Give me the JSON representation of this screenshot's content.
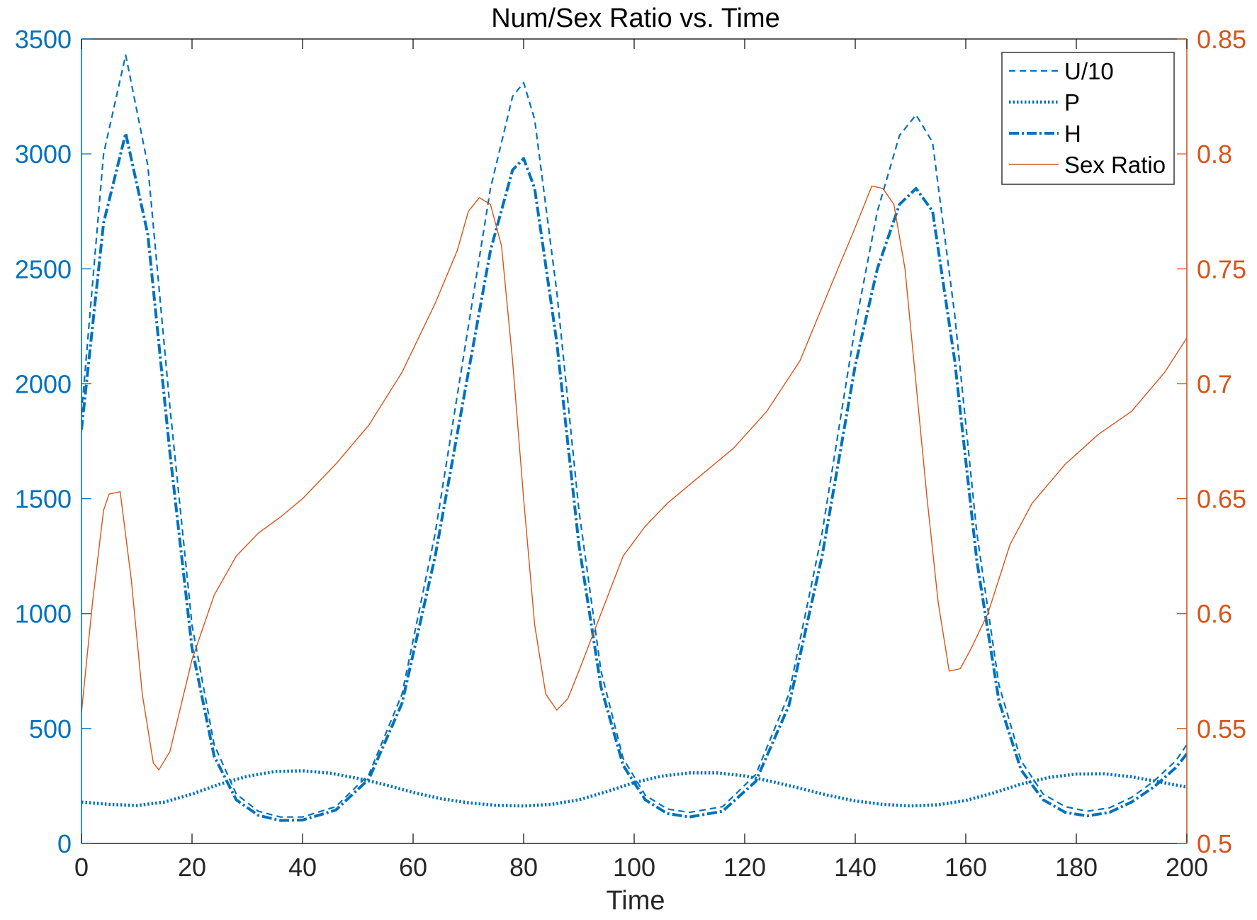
{
  "chart_data": {
    "type": "line",
    "title": "Num/Sex Ratio vs. Time",
    "xlabel": "Time",
    "ylabel_left": "",
    "ylabel_right": "",
    "xlim": [
      0,
      200
    ],
    "ylim_left": [
      0,
      3500
    ],
    "ylim_right": [
      0.5,
      0.85
    ],
    "x_ticks": [
      0,
      20,
      40,
      60,
      80,
      100,
      120,
      140,
      160,
      180,
      200
    ],
    "y_left_ticks": [
      0,
      500,
      1000,
      1500,
      2000,
      2500,
      3000,
      3500
    ],
    "y_right_ticks": [
      "0.5",
      "0.55",
      "0.6",
      "0.65",
      "0.7",
      "0.75",
      "0.8",
      "0.85"
    ],
    "grid": false,
    "legend_position": "top-right",
    "colors": {
      "left_axis": "#0072BD",
      "right_axis": "#D95319",
      "axes_black": "#262626"
    },
    "series": [
      {
        "name": "U/10",
        "axis": "left",
        "style": "dashed",
        "color": "#0072BD",
        "x": [
          0,
          4,
          8,
          12,
          16,
          20,
          24,
          28,
          32,
          36,
          40,
          46,
          52,
          58,
          64,
          70,
          74,
          78,
          80,
          82,
          86,
          90,
          94,
          98,
          102,
          106,
          110,
          116,
          122,
          128,
          134,
          140,
          144,
          148,
          151,
          154,
          158,
          162,
          166,
          170,
          174,
          178,
          182,
          186,
          190,
          194,
          198,
          200
        ],
        "values": [
          1870,
          3000,
          3430,
          2950,
          1900,
          950,
          430,
          215,
          140,
          115,
          115,
          160,
          300,
          650,
          1350,
          2250,
          2850,
          3250,
          3310,
          3150,
          2400,
          1450,
          750,
          370,
          210,
          150,
          135,
          160,
          300,
          650,
          1350,
          2250,
          2750,
          3080,
          3170,
          3050,
          2300,
          1350,
          690,
          360,
          215,
          160,
          140,
          155,
          200,
          270,
          360,
          430
        ]
      },
      {
        "name": "P",
        "axis": "left",
        "style": "dotted",
        "color": "#0072BD",
        "x": [
          0,
          5,
          10,
          15,
          20,
          25,
          30,
          35,
          40,
          45,
          50,
          55,
          60,
          65,
          70,
          75,
          80,
          85,
          90,
          95,
          100,
          105,
          110,
          115,
          120,
          125,
          130,
          135,
          140,
          145,
          150,
          155,
          160,
          165,
          170,
          175,
          180,
          185,
          190,
          195,
          200
        ],
        "values": [
          180,
          170,
          165,
          180,
          215,
          258,
          292,
          313,
          316,
          306,
          283,
          255,
          222,
          195,
          177,
          166,
          163,
          170,
          190,
          225,
          265,
          293,
          307,
          307,
          294,
          269,
          240,
          210,
          185,
          170,
          163,
          168,
          187,
          220,
          258,
          287,
          302,
          303,
          290,
          268,
          245
        ]
      },
      {
        "name": "H",
        "axis": "left",
        "style": "dashdot",
        "color": "#0072BD",
        "x": [
          0,
          4,
          8,
          12,
          16,
          20,
          24,
          28,
          32,
          36,
          40,
          46,
          52,
          58,
          64,
          70,
          74,
          78,
          80,
          82,
          86,
          90,
          94,
          98,
          102,
          106,
          110,
          116,
          122,
          128,
          134,
          140,
          144,
          148,
          151,
          154,
          158,
          162,
          166,
          170,
          174,
          178,
          182,
          186,
          190,
          194,
          198,
          200
        ],
        "values": [
          1800,
          2700,
          3090,
          2650,
          1700,
          850,
          380,
          190,
          122,
          100,
          102,
          145,
          280,
          610,
          1250,
          2050,
          2580,
          2930,
          2980,
          2850,
          2180,
          1300,
          680,
          340,
          190,
          130,
          115,
          140,
          270,
          600,
          1250,
          2080,
          2500,
          2780,
          2850,
          2750,
          2100,
          1230,
          620,
          320,
          190,
          135,
          120,
          135,
          180,
          245,
          330,
          390
        ]
      },
      {
        "name": "Sex Ratio",
        "axis": "right",
        "style": "solid",
        "color": "#D95319",
        "x": [
          0,
          2,
          4,
          5,
          7,
          9,
          11,
          13,
          14,
          16,
          18,
          20,
          24,
          28,
          32,
          36,
          40,
          46,
          52,
          58,
          64,
          68,
          70,
          72,
          74,
          76,
          78,
          80,
          82,
          84,
          86,
          88,
          90,
          94,
          98,
          102,
          106,
          112,
          118,
          124,
          130,
          136,
          140,
          143,
          145,
          147,
          149,
          151,
          153,
          155,
          157,
          159,
          161,
          164,
          168,
          172,
          178,
          184,
          190,
          196,
          200
        ],
        "values": [
          0.557,
          0.605,
          0.645,
          0.652,
          0.653,
          0.615,
          0.565,
          0.535,
          0.532,
          0.54,
          0.56,
          0.58,
          0.608,
          0.625,
          0.635,
          0.642,
          0.65,
          0.665,
          0.682,
          0.705,
          0.735,
          0.758,
          0.775,
          0.781,
          0.778,
          0.76,
          0.71,
          0.65,
          0.595,
          0.565,
          0.558,
          0.563,
          0.575,
          0.6,
          0.625,
          0.638,
          0.648,
          0.66,
          0.672,
          0.688,
          0.71,
          0.745,
          0.768,
          0.786,
          0.785,
          0.778,
          0.75,
          0.7,
          0.65,
          0.605,
          0.575,
          0.576,
          0.585,
          0.6,
          0.63,
          0.648,
          0.665,
          0.678,
          0.688,
          0.705,
          0.72
        ]
      }
    ]
  }
}
